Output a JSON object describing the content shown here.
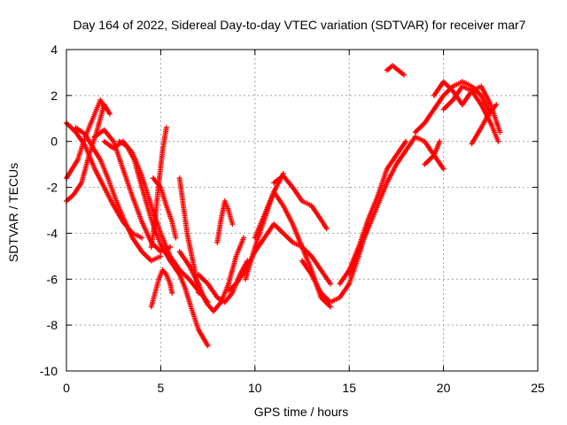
{
  "chart_data": {
    "type": "scatter",
    "title": "Day 164 of 2022, Sidereal Day-to-day VTEC variation (SDTVAR) for receiver mar7",
    "xlabel": "GPS time / hours",
    "ylabel": "SDTVAR / TECUs",
    "xlim": [
      0,
      25
    ],
    "ylim": [
      -10,
      4
    ],
    "xticks": [
      "0",
      "5",
      "10",
      "15",
      "20",
      "25"
    ],
    "yticks": [
      "-10",
      "-8",
      "-6",
      "-4",
      "-2",
      "0",
      "2",
      "4"
    ],
    "grid": true,
    "marker": "plus",
    "color": "#ff0000",
    "series": [
      {
        "x": [
          0.0,
          0.5,
          1.0,
          1.5,
          2.0,
          2.5,
          3.0,
          3.5,
          4.0
        ],
        "y": [
          0.8,
          0.4,
          -0.2,
          -1.2,
          -2.0,
          -2.8,
          -3.5,
          -4.0,
          -4.2
        ]
      },
      {
        "x": [
          0.0,
          0.4,
          0.8,
          1.2,
          1.6,
          2.0,
          2.3
        ],
        "y": [
          -2.6,
          -2.3,
          -1.8,
          -0.6,
          0.4,
          1.6,
          1.2
        ]
      },
      {
        "x": [
          0.0,
          0.3,
          0.6,
          1.0,
          1.4,
          1.8,
          2.0
        ],
        "y": [
          -1.6,
          -1.2,
          -0.8,
          0.2,
          1.0,
          1.8,
          1.5
        ]
      },
      {
        "x": [
          0.5,
          1.0,
          1.5,
          1.8,
          2.2,
          2.6,
          3.0,
          3.5,
          4.0,
          4.5,
          5.0
        ],
        "y": [
          0.6,
          0.3,
          -0.4,
          -0.8,
          -1.6,
          -2.5,
          -3.3,
          -4.2,
          -4.8,
          -5.2,
          -5.0
        ]
      },
      {
        "x": [
          1.5,
          2.0,
          2.5,
          3.0,
          3.5,
          4.0,
          4.5,
          5.0,
          5.5
        ],
        "y": [
          0.2,
          0.5,
          0.0,
          -1.2,
          -2.4,
          -3.5,
          -4.4,
          -4.8,
          -4.6
        ]
      },
      {
        "x": [
          2.0,
          2.5,
          3.0,
          3.5,
          4.0,
          4.5,
          5.0,
          5.5,
          6.0,
          6.5,
          7.0,
          7.5
        ],
        "y": [
          0.0,
          -0.3,
          0.0,
          -0.5,
          -1.5,
          -2.8,
          -4.0,
          -5.0,
          -5.6,
          -6.0,
          -6.5,
          -7.0
        ]
      },
      {
        "x": [
          2.8,
          3.2,
          3.6,
          4.0,
          4.5,
          5.0,
          5.5,
          6.0
        ],
        "y": [
          0.0,
          -0.2,
          -0.8,
          -2.0,
          -3.4,
          -4.5,
          -5.2,
          -5.6
        ]
      },
      {
        "x": [
          4.6,
          5.0,
          5.3,
          5.6,
          5.8
        ],
        "y": [
          -1.6,
          -2.0,
          -2.8,
          -3.5,
          -4.2
        ]
      },
      {
        "x": [
          4.5,
          4.7,
          4.9,
          5.1,
          5.3,
          5.5,
          5.6
        ],
        "y": [
          -7.2,
          -6.6,
          -6.0,
          -5.6,
          -5.8,
          -6.2,
          -6.6
        ]
      },
      {
        "x": [
          4.5,
          4.7,
          4.9,
          5.1,
          5.3
        ],
        "y": [
          -4.6,
          -3.4,
          -1.8,
          -0.4,
          0.6
        ]
      },
      {
        "x": [
          5.5,
          6.0,
          6.3,
          6.6,
          7.0,
          7.5
        ],
        "y": [
          -5.2,
          -5.8,
          -6.4,
          -7.2,
          -8.2,
          -8.9
        ]
      },
      {
        "x": [
          6.0,
          6.2,
          6.4,
          6.6,
          6.8,
          7.0
        ],
        "y": [
          -1.6,
          -2.8,
          -4.0,
          -4.8,
          -5.6,
          -6.6
        ]
      },
      {
        "x": [
          6.0,
          6.5,
          7.0,
          7.4,
          7.8,
          8.2,
          8.6,
          9.0,
          9.4
        ],
        "y": [
          -4.8,
          -5.4,
          -6.2,
          -7.0,
          -7.4,
          -7.0,
          -6.2,
          -5.0,
          -4.2
        ]
      },
      {
        "x": [
          7.0,
          7.5,
          8.0,
          8.4,
          8.8,
          9.2,
          9.6
        ],
        "y": [
          -5.8,
          -6.2,
          -6.8,
          -7.0,
          -6.6,
          -5.8,
          -5.2
        ]
      },
      {
        "x": [
          8.0,
          8.2,
          8.4,
          8.6,
          8.8
        ],
        "y": [
          -4.4,
          -3.4,
          -2.6,
          -3.0,
          -3.6
        ]
      },
      {
        "x": [
          8.6,
          9.0,
          9.5,
          10.0,
          10.5,
          11.0,
          11.5,
          12.0,
          12.5,
          13.0,
          13.5,
          14.0
        ],
        "y": [
          -6.5,
          -6.2,
          -5.6,
          -4.8,
          -4.2,
          -3.6,
          -4.0,
          -4.4,
          -4.6,
          -5.0,
          -5.6,
          -6.2
        ]
      },
      {
        "x": [
          9.5,
          10.0,
          10.5,
          11.0,
          11.5
        ],
        "y": [
          -6.0,
          -4.6,
          -3.4,
          -2.2,
          -1.4
        ]
      },
      {
        "x": [
          10.0,
          10.5,
          11.0,
          11.5,
          12.0,
          12.5,
          13.0,
          13.5,
          14.0
        ],
        "y": [
          -4.2,
          -3.2,
          -2.2,
          -2.8,
          -3.6,
          -4.6,
          -5.6,
          -6.8,
          -7.2
        ]
      },
      {
        "x": [
          11.0,
          11.5,
          12.0,
          12.5,
          13.0,
          13.5,
          13.8
        ],
        "y": [
          -1.8,
          -1.5,
          -2.0,
          -2.6,
          -2.8,
          -3.4,
          -3.8
        ]
      },
      {
        "x": [
          12.5,
          13.0,
          13.5,
          14.0,
          14.5,
          15.0,
          15.5,
          16.0
        ],
        "y": [
          -5.2,
          -5.8,
          -6.6,
          -7.0,
          -6.8,
          -6.2,
          -5.0,
          -3.6
        ]
      },
      {
        "x": [
          14.5,
          15.0,
          15.5,
          16.0,
          16.5,
          17.0,
          17.5,
          18.0
        ],
        "y": [
          -6.2,
          -5.6,
          -4.6,
          -3.4,
          -2.4,
          -1.2,
          -0.6,
          0.0
        ]
      },
      {
        "x": [
          15.0,
          15.5,
          16.0,
          16.5,
          17.0,
          17.5,
          18.0,
          18.5,
          19.0,
          19.5,
          20.0
        ],
        "y": [
          -5.8,
          -4.8,
          -3.8,
          -2.8,
          -1.8,
          -1.0,
          -0.4,
          0.2,
          0.0,
          -0.6,
          -1.2
        ]
      },
      {
        "x": [
          17.0,
          17.3,
          17.6,
          17.9
        ],
        "y": [
          3.1,
          3.3,
          3.1,
          2.9
        ]
      },
      {
        "x": [
          18.5,
          19.0,
          19.5,
          20.0,
          20.5,
          21.0,
          21.5,
          22.0,
          22.5
        ],
        "y": [
          0.4,
          0.8,
          1.4,
          2.0,
          2.4,
          2.6,
          2.4,
          2.0,
          1.2
        ]
      },
      {
        "x": [
          19.5,
          20.0,
          20.5,
          21.0,
          21.5,
          22.0,
          22.5,
          23.0
        ],
        "y": [
          2.0,
          2.6,
          2.2,
          1.6,
          2.2,
          2.4,
          1.6,
          0.4
        ]
      },
      {
        "x": [
          20.0,
          20.5,
          21.0,
          21.5,
          22.0,
          22.5,
          22.9
        ],
        "y": [
          1.4,
          1.8,
          2.4,
          2.2,
          1.6,
          0.8,
          0.0
        ]
      },
      {
        "x": [
          21.5,
          22.0,
          22.4,
          22.8
        ],
        "y": [
          -0.1,
          0.6,
          1.2,
          1.6
        ]
      },
      {
        "x": [
          19.0,
          19.5,
          19.8
        ],
        "y": [
          -1.0,
          -0.6,
          0.0
        ]
      }
    ]
  }
}
